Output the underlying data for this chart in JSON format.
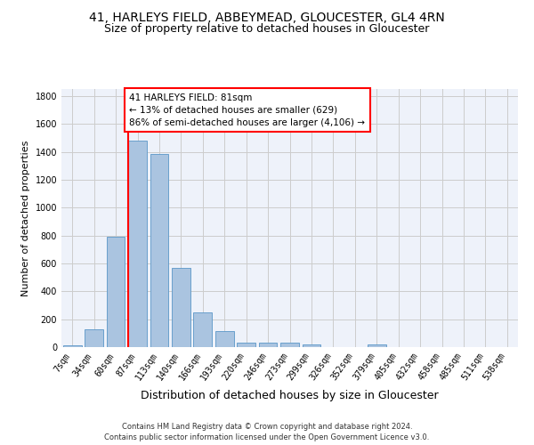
{
  "title": "41, HARLEYS FIELD, ABBEYMEAD, GLOUCESTER, GL4 4RN",
  "subtitle": "Size of property relative to detached houses in Gloucester",
  "xlabel": "Distribution of detached houses by size in Gloucester",
  "ylabel": "Number of detached properties",
  "bin_labels": [
    "7sqm",
    "34sqm",
    "60sqm",
    "87sqm",
    "113sqm",
    "140sqm",
    "166sqm",
    "193sqm",
    "220sqm",
    "246sqm",
    "273sqm",
    "299sqm",
    "326sqm",
    "352sqm",
    "379sqm",
    "405sqm",
    "432sqm",
    "458sqm",
    "485sqm",
    "511sqm",
    "538sqm"
  ],
  "bar_values": [
    15,
    130,
    790,
    1480,
    1385,
    570,
    250,
    115,
    35,
    30,
    30,
    20,
    0,
    0,
    20,
    0,
    0,
    0,
    0,
    0,
    0
  ],
  "bar_color": "#aac4e0",
  "bar_edge_color": "#5a96c8",
  "vline_color": "red",
  "vline_bar_index": 3,
  "annotation_text": "41 HARLEYS FIELD: 81sqm\n← 13% of detached houses are smaller (629)\n86% of semi-detached houses are larger (4,106) →",
  "annotation_box_facecolor": "white",
  "annotation_box_edgecolor": "red",
  "ylim": [
    0,
    1850
  ],
  "yticks": [
    0,
    200,
    400,
    600,
    800,
    1000,
    1200,
    1400,
    1600,
    1800
  ],
  "footer_text": "Contains HM Land Registry data © Crown copyright and database right 2024.\nContains public sector information licensed under the Open Government Licence v3.0.",
  "title_fontsize": 10,
  "subtitle_fontsize": 9,
  "ylabel_fontsize": 8,
  "xlabel_fontsize": 9,
  "tick_fontsize": 7,
  "grid_color": "#cccccc",
  "bg_color": "#eef2fa"
}
